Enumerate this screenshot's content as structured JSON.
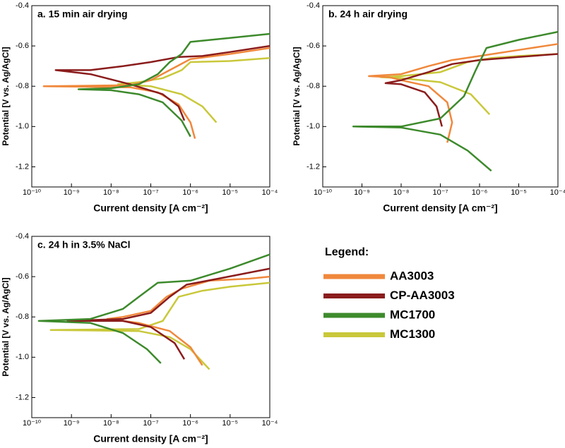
{
  "chart_data": [
    {
      "type": "line",
      "title": "a. 15 min air drying",
      "xlabel": "Current density [A cm⁻²]",
      "ylabel": "Potential [V vs. Ag/AgCl]",
      "xlog": true,
      "xlim": [
        1e-10,
        0.0001
      ],
      "xticks": [
        {
          "value": 1e-10,
          "label": "10⁻¹⁰"
        },
        {
          "value": 1e-09,
          "label": "10⁻⁹"
        },
        {
          "value": 1e-08,
          "label": "10⁻⁸"
        },
        {
          "value": 1e-07,
          "label": "10⁻⁷"
        },
        {
          "value": 1e-06,
          "label": "10⁻⁶"
        },
        {
          "value": 1e-05,
          "label": "10⁻⁵"
        },
        {
          "value": 0.0001,
          "label": "10⁻⁴"
        }
      ],
      "ylim": [
        -1.3,
        -0.4
      ],
      "yticks": [
        -0.4,
        -0.6,
        -0.8,
        {
          "value": -1.0,
          "label": "-1.0"
        },
        -1.2
      ],
      "series": [
        {
          "x": [
            1.3e-06,
            1e-06,
            5e-07,
            1.5e-07,
            3e-08,
            2e-10,
            3e-08,
            1e-07,
            3e-07,
            1e-06,
            1e-05,
            0.0001
          ],
          "values": [
            -1.06,
            -0.98,
            -0.89,
            -0.83,
            -0.805,
            -0.8,
            -0.795,
            -0.77,
            -0.72,
            -0.665,
            -0.64,
            -0.61
          ]
        },
        {
          "x": [
            7e-07,
            5e-07,
            2e-07,
            3e-08,
            3e-09,
            4e-10,
            3e-09,
            2e-08,
            1e-07,
            5e-07,
            2e-06,
            1e-05,
            0.0001
          ],
          "values": [
            -0.97,
            -0.9,
            -0.84,
            -0.79,
            -0.74,
            -0.72,
            -0.72,
            -0.7,
            -0.68,
            -0.655,
            -0.65,
            -0.63,
            -0.6
          ]
        },
        {
          "x": [
            1e-06,
            6e-07,
            2e-07,
            5e-08,
            1e-08,
            1.5e-09,
            1e-08,
            5e-08,
            1.5e-07,
            3e-07,
            6e-07,
            1e-06,
            1e-05,
            0.0001
          ],
          "values": [
            -1.05,
            -0.97,
            -0.88,
            -0.84,
            -0.82,
            -0.815,
            -0.81,
            -0.79,
            -0.74,
            -0.68,
            -0.64,
            -0.58,
            -0.56,
            -0.54
          ]
        },
        {
          "x": [
            4.5e-06,
            2e-06,
            6e-07,
            1e-07,
            1.5e-08,
            5e-08,
            2e-07,
            6e-07,
            1e-06,
            1e-05,
            0.0001
          ],
          "values": [
            -0.98,
            -0.9,
            -0.84,
            -0.8,
            -0.79,
            -0.78,
            -0.76,
            -0.72,
            -0.68,
            -0.675,
            -0.66
          ]
        }
      ]
    },
    {
      "type": "line",
      "title": "b. 24 h air drying",
      "xlabel": "Current density [A cm⁻²]",
      "ylabel": "Potential [V vs. Ag/AgCl]",
      "xlog": true,
      "xlim": [
        1e-10,
        0.0001
      ],
      "xticks": [
        {
          "value": 1e-10,
          "label": "10⁻¹⁰"
        },
        {
          "value": 1e-09,
          "label": "10⁻⁹"
        },
        {
          "value": 1e-08,
          "label": "10⁻⁸"
        },
        {
          "value": 1e-07,
          "label": "10⁻⁷"
        },
        {
          "value": 1e-06,
          "label": "10⁻⁶"
        },
        {
          "value": 1e-05,
          "label": "10⁻⁵"
        },
        {
          "value": 0.0001,
          "label": "10⁻⁴"
        }
      ],
      "ylim": [
        -1.3,
        -0.4
      ],
      "yticks": [
        -0.4,
        -0.6,
        -0.8,
        {
          "value": -1.0,
          "label": "-1.0"
        },
        -1.2
      ],
      "series": [
        {
          "x": [
            1.5e-07,
            2e-07,
            1.5e-07,
            5e-08,
            1e-08,
            5e-09,
            1.5e-09,
            1e-08,
            5e-08,
            2e-07,
            1e-06,
            1e-05,
            0.0001
          ],
          "values": [
            -1.08,
            -0.98,
            -0.88,
            -0.8,
            -0.77,
            -0.755,
            -0.75,
            -0.74,
            -0.7,
            -0.67,
            -0.65,
            -0.62,
            -0.59
          ]
        },
        {
          "x": [
            1.1e-07,
            8e-08,
            4e-08,
            1e-08,
            4e-09,
            1e-08,
            5e-08,
            2e-07,
            1e-06,
            1e-05,
            0.0001
          ],
          "values": [
            -1.0,
            -0.9,
            -0.83,
            -0.79,
            -0.785,
            -0.77,
            -0.73,
            -0.69,
            -0.67,
            -0.655,
            -0.64
          ]
        },
        {
          "x": [
            2e-06,
            5e-07,
            1e-07,
            1e-08,
            6e-10,
            1e-08,
            1e-07,
            4e-07,
            8e-07,
            1.5e-06,
            1e-05,
            0.0001
          ],
          "values": [
            -1.22,
            -1.12,
            -1.04,
            -1.005,
            -1.0,
            -1.0,
            -0.96,
            -0.85,
            -0.72,
            -0.61,
            -0.57,
            -0.53
          ]
        },
        {
          "x": [
            1.8e-06,
            6e-07,
            1e-07,
            1e-08,
            3e-09,
            1e-08,
            1e-07,
            5e-07,
            2e-06,
            1e-05,
            0.0001
          ],
          "values": [
            -0.94,
            -0.84,
            -0.78,
            -0.76,
            -0.755,
            -0.75,
            -0.73,
            -0.68,
            -0.66,
            -0.65,
            -0.64
          ]
        }
      ]
    },
    {
      "type": "line",
      "title": "c. 24 h in 3.5% NaCl",
      "xlabel": "Current density [A cm⁻²]",
      "ylabel": "Potential [V vs. Ag/AgCl]",
      "xlog": true,
      "xlim": [
        1e-10,
        0.0001
      ],
      "xticks": [
        {
          "value": 1e-10,
          "label": "10⁻¹⁰"
        },
        {
          "value": 1e-09,
          "label": "10⁻⁹"
        },
        {
          "value": 1e-08,
          "label": "10⁻⁸"
        },
        {
          "value": 1e-07,
          "label": "10⁻⁷"
        },
        {
          "value": 1e-06,
          "label": "10⁻⁶"
        },
        {
          "value": 1e-05,
          "label": "10⁻⁵"
        },
        {
          "value": 0.0001,
          "label": "10⁻⁴"
        }
      ],
      "ylim": [
        -1.3,
        -0.4
      ],
      "yticks": [
        -0.4,
        -0.6,
        -0.8,
        {
          "value": -1.0,
          "label": "-1.0"
        },
        -1.2
      ],
      "series": [
        {
          "x": [
            2e-06,
            1e-06,
            3e-07,
            5e-08,
            8e-09,
            2e-08,
            1e-07,
            2.5e-07,
            6e-07,
            3e-06,
            3e-05,
            0.0001
          ],
          "values": [
            -1.04,
            -0.95,
            -0.87,
            -0.83,
            -0.81,
            -0.8,
            -0.77,
            -0.7,
            -0.66,
            -0.62,
            -0.61,
            -0.6
          ]
        },
        {
          "x": [
            7e-07,
            4e-07,
            1e-07,
            2e-08,
            8e-10,
            2e-08,
            1e-07,
            3e-07,
            8e-07,
            5e-06,
            0.0001
          ],
          "values": [
            -1.01,
            -0.93,
            -0.85,
            -0.82,
            -0.82,
            -0.81,
            -0.78,
            -0.7,
            -0.64,
            -0.61,
            -0.56
          ]
        },
        {
          "x": [
            1.8e-07,
            8e-08,
            2e-08,
            3e-09,
            1.5e-10,
            3e-09,
            2e-08,
            5e-08,
            1.5e-07,
            1e-06,
            1e-05,
            0.0001
          ],
          "values": [
            -1.03,
            -0.96,
            -0.88,
            -0.83,
            -0.82,
            -0.81,
            -0.76,
            -0.7,
            -0.63,
            -0.62,
            -0.56,
            -0.49
          ]
        },
        {
          "x": [
            3e-06,
            1e-06,
            3e-07,
            5e-08,
            3e-10,
            5e-08,
            2e-07,
            5e-07,
            2e-06,
            1e-05,
            0.0001
          ],
          "values": [
            -1.06,
            -0.96,
            -0.9,
            -0.87,
            -0.865,
            -0.86,
            -0.82,
            -0.7,
            -0.67,
            -0.65,
            -0.63
          ]
        }
      ]
    }
  ],
  "legend": {
    "title": "Legend:",
    "series": [
      {
        "name": "AA3003",
        "color": "#f0883c"
      },
      {
        "name": "CP-AA3003",
        "color": "#8b1c1c"
      },
      {
        "name": "MC1700",
        "color": "#3d8a2c"
      },
      {
        "name": "MC1300",
        "color": "#c9c83a"
      }
    ]
  }
}
